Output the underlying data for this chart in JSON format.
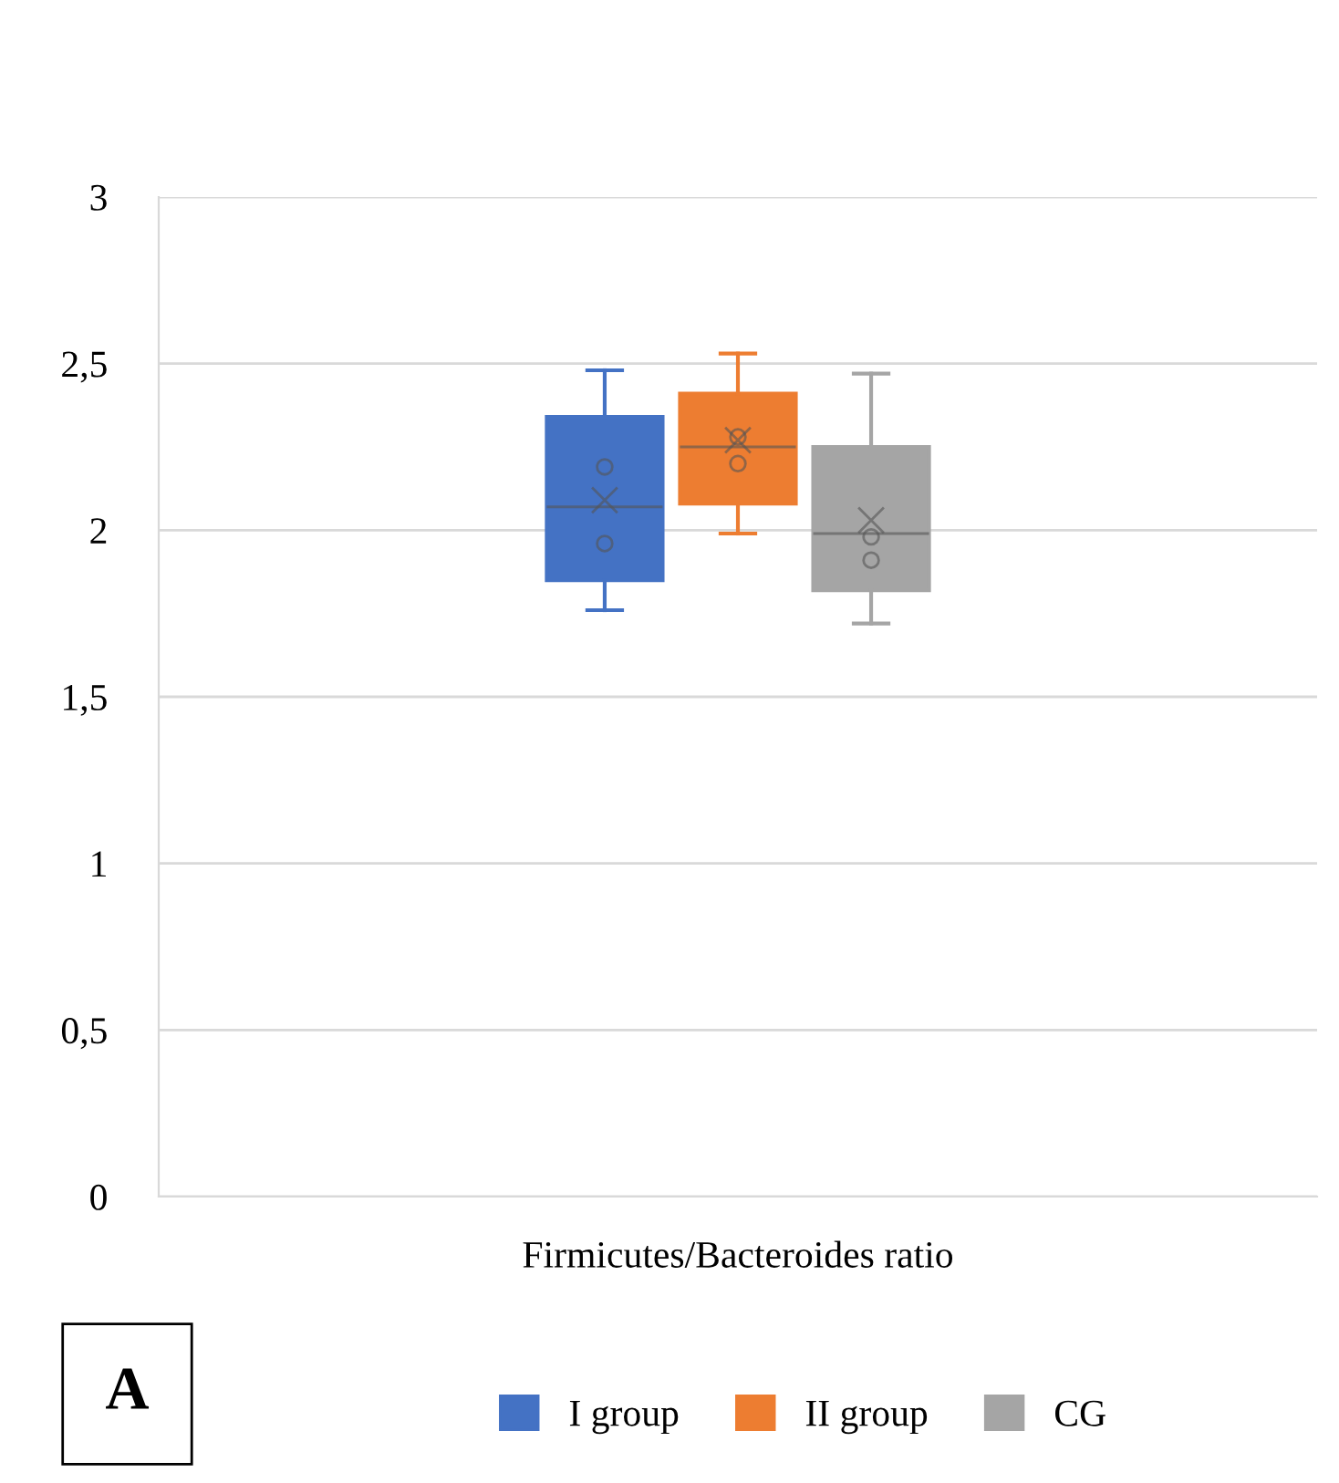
{
  "chart_data": {
    "type": "box",
    "xlabel": "Firmicutes/Bacteroides ratio",
    "categories": [
      null
    ],
    "series": [
      {
        "name": "I group",
        "color": "#4472c4",
        "boxes": [
          {
            "low": 1.76,
            "q1": 1.85,
            "median": 2.07,
            "q3": 2.34,
            "high": 2.48,
            "mean": 2.09,
            "outliers": [
              2.19,
              1.96
            ]
          }
        ]
      },
      {
        "name": "II group",
        "color": "#ed7d31",
        "boxes": [
          {
            "low": 1.99,
            "q1": 2.08,
            "median": 2.25,
            "q3": 2.41,
            "high": 2.53,
            "mean": 2.27,
            "outliers": [
              2.28,
              2.2
            ]
          }
        ]
      },
      {
        "name": "CG",
        "color": "#a5a5a5",
        "boxes": [
          {
            "low": 1.72,
            "q1": 1.82,
            "median": 1.99,
            "q3": 2.25,
            "high": 2.47,
            "mean": 2.03,
            "outliers": [
              1.98,
              1.91
            ]
          }
        ]
      }
    ],
    "ylim": [
      0,
      3
    ],
    "yticks": [
      {
        "value": 0,
        "label": "0"
      },
      {
        "value": 0.5,
        "label": "0,5"
      },
      {
        "value": 1,
        "label": "1"
      },
      {
        "value": 1.5,
        "label": "1,5"
      },
      {
        "value": 2,
        "label": "2"
      },
      {
        "value": 2.5,
        "label": "2,5"
      },
      {
        "value": 3,
        "label": "3"
      }
    ],
    "grid": "y",
    "legend": "bottom",
    "marker": "circle",
    "annotations": [
      "A"
    ]
  }
}
